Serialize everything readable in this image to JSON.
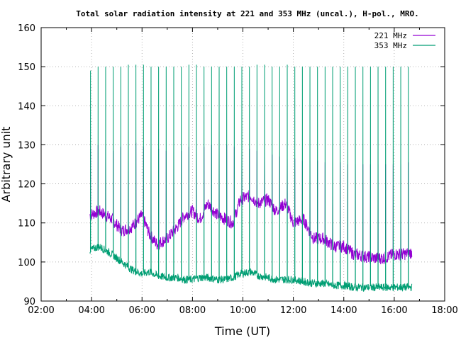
{
  "chart_data": {
    "type": "line",
    "title": "Total solar radiation intensity at 221 and 353 MHz (uncal.), H-pol., MRO.",
    "xlabel": "Time (UT)",
    "ylabel": "Arbitrary unit",
    "x_ticks": [
      "02:00",
      "04:00",
      "06:00",
      "08:00",
      "10:00",
      "12:00",
      "14:00",
      "16:00",
      "18:00"
    ],
    "x_tick_hours": [
      2,
      4,
      6,
      8,
      10,
      12,
      14,
      16,
      18
    ],
    "xlim_hours": [
      2,
      18
    ],
    "y_ticks": [
      "90",
      "100",
      "110",
      "120",
      "130",
      "140",
      "150",
      "160"
    ],
    "ylim": [
      90,
      160
    ],
    "grid": true,
    "legend_position": "top-right",
    "spike_interval_hours": 0.3,
    "series": [
      {
        "name": "221 MHz",
        "color": "#9400d3",
        "x_hours": [
          3.93,
          4.3,
          4.8,
          5.2,
          5.6,
          6.0,
          6.3,
          6.6,
          7.0,
          7.4,
          7.7,
          8.0,
          8.3,
          8.6,
          9.0,
          9.3,
          9.6,
          9.9,
          10.3,
          10.6,
          11.0,
          11.3,
          11.7,
          12.0,
          12.4,
          12.8,
          13.2,
          13.6,
          14.0,
          14.4,
          14.8,
          15.2,
          15.6,
          16.0,
          16.4,
          16.7
        ],
        "values": [
          112,
          113,
          111,
          108,
          109,
          112,
          107,
          104.5,
          106,
          109,
          112,
          113,
          111,
          115,
          112,
          111,
          110,
          116,
          117,
          115,
          116,
          113,
          115,
          110,
          111,
          106,
          106,
          104,
          104,
          102,
          101.5,
          101,
          101,
          102,
          102,
          102.5
        ],
        "spike_peaks": [
          129,
          130,
          130,
          128.5,
          129.5,
          130,
          130.5,
          129.5,
          129,
          129,
          128.5,
          128.5,
          128.5,
          129.5,
          129.5,
          129.5,
          130,
          131,
          130,
          129.5,
          129,
          129,
          128.5,
          128,
          127.5,
          127,
          126.5,
          126.5,
          126,
          126,
          126,
          125.5,
          125.5,
          125.5,
          125,
          125,
          125,
          125,
          125,
          125,
          125,
          125,
          125.5
        ]
      },
      {
        "name": "353 MHz",
        "color": "#009e73",
        "x_hours": [
          3.93,
          4.3,
          4.8,
          5.2,
          5.6,
          6.0,
          6.3,
          6.6,
          7.0,
          7.4,
          7.7,
          8.0,
          8.3,
          8.6,
          9.0,
          9.3,
          9.6,
          9.9,
          10.3,
          10.6,
          11.0,
          11.3,
          11.7,
          12.0,
          12.4,
          12.8,
          13.2,
          13.6,
          14.0,
          14.4,
          14.8,
          15.2,
          15.6,
          16.0,
          16.4,
          16.7
        ],
        "values": [
          103,
          104,
          102,
          100,
          98,
          97,
          97.5,
          96.5,
          96,
          96,
          95.5,
          95.5,
          96,
          96,
          95.5,
          95.5,
          96,
          97,
          97.5,
          96.5,
          96,
          95.5,
          95.5,
          95.5,
          95,
          94.5,
          94.5,
          94,
          94,
          93.5,
          93.5,
          93.5,
          93.5,
          93.5,
          93.5,
          93.5
        ],
        "spike_peaks": [
          149,
          150,
          150,
          150,
          150,
          150.5,
          150.5,
          150.5,
          150,
          150,
          150,
          150,
          150,
          150.5,
          150.5,
          150,
          150,
          150,
          150,
          150,
          150,
          150,
          150.5,
          150.5,
          150,
          150,
          150.5,
          150,
          150,
          150,
          150,
          150,
          150,
          150,
          150,
          150,
          150,
          150,
          150,
          150,
          150,
          150,
          150
        ]
      }
    ]
  }
}
